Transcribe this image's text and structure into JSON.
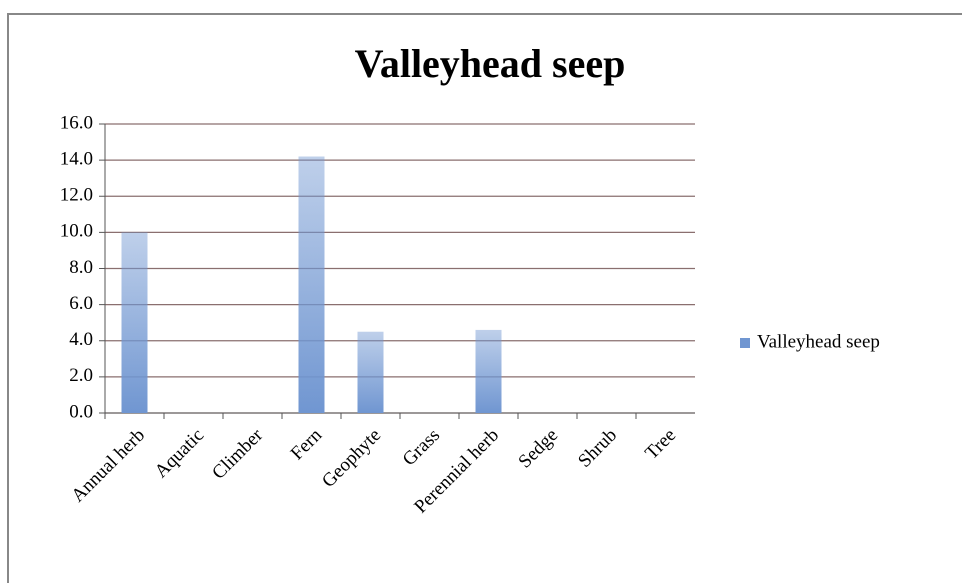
{
  "chart_data": {
    "type": "bar",
    "title": "Valleyhead seep",
    "categories": [
      "Annual herb",
      "Aquatic",
      "Climber",
      "Fern",
      "Geophyte",
      "Grass",
      "Perennial herb",
      "Sedge",
      "Shrub",
      "Tree"
    ],
    "series": [
      {
        "name": "Valleyhead seep",
        "color": "#7096d1",
        "values": [
          10.0,
          0,
          0,
          14.2,
          4.5,
          0,
          4.6,
          0,
          0,
          0
        ]
      }
    ],
    "ylim": [
      0,
      16
    ],
    "yticks": [
      {
        "value": 0,
        "label": "0.0"
      },
      {
        "value": 2,
        "label": "2.0"
      },
      {
        "value": 4,
        "label": "4.0"
      },
      {
        "value": 6,
        "label": "6.0"
      },
      {
        "value": 8,
        "label": "8.0"
      },
      {
        "value": 10,
        "label": "10.0"
      },
      {
        "value": 12,
        "label": "12.0"
      },
      {
        "value": 14,
        "label": "14.0"
      },
      {
        "value": 16,
        "label": "16.0"
      }
    ],
    "grid": true,
    "legend": "right"
  }
}
